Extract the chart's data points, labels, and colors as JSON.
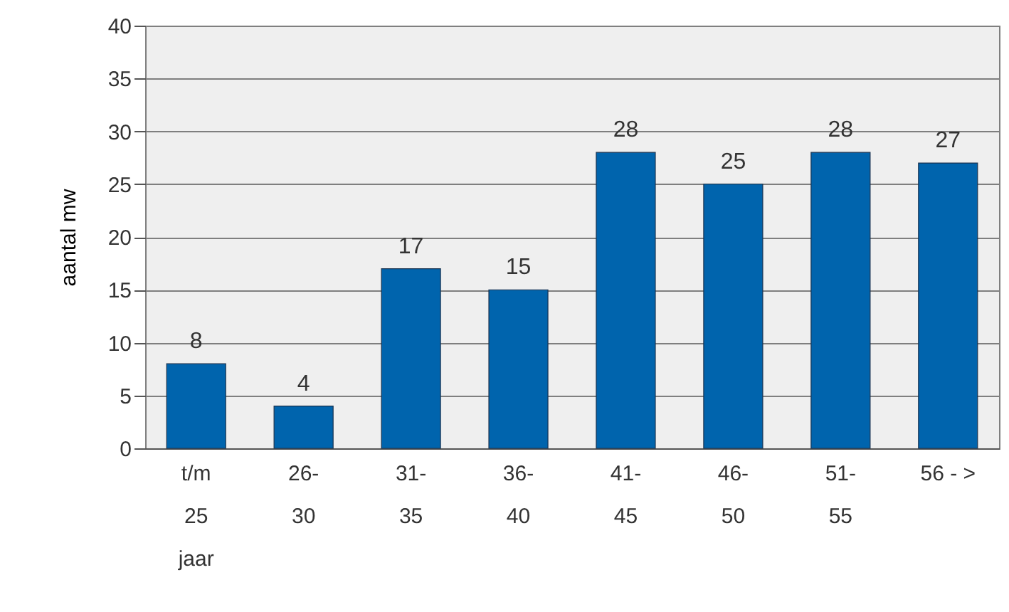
{
  "chart_data": {
    "type": "bar",
    "ylabel": "aantal mw",
    "categories": [
      "t/m\n25\njaar",
      "26-\n30",
      "31-\n35",
      "36-\n40",
      "41-\n45",
      "46-\n50",
      "51-\n55",
      "56 - >"
    ],
    "values": [
      8,
      4,
      17,
      15,
      28,
      25,
      28,
      27
    ],
    "color": "#0064ad",
    "ylim": [
      0,
      40
    ],
    "yticks": [
      0,
      5,
      10,
      15,
      20,
      25,
      30,
      35,
      40
    ],
    "grid": "y",
    "data_labels": true
  }
}
